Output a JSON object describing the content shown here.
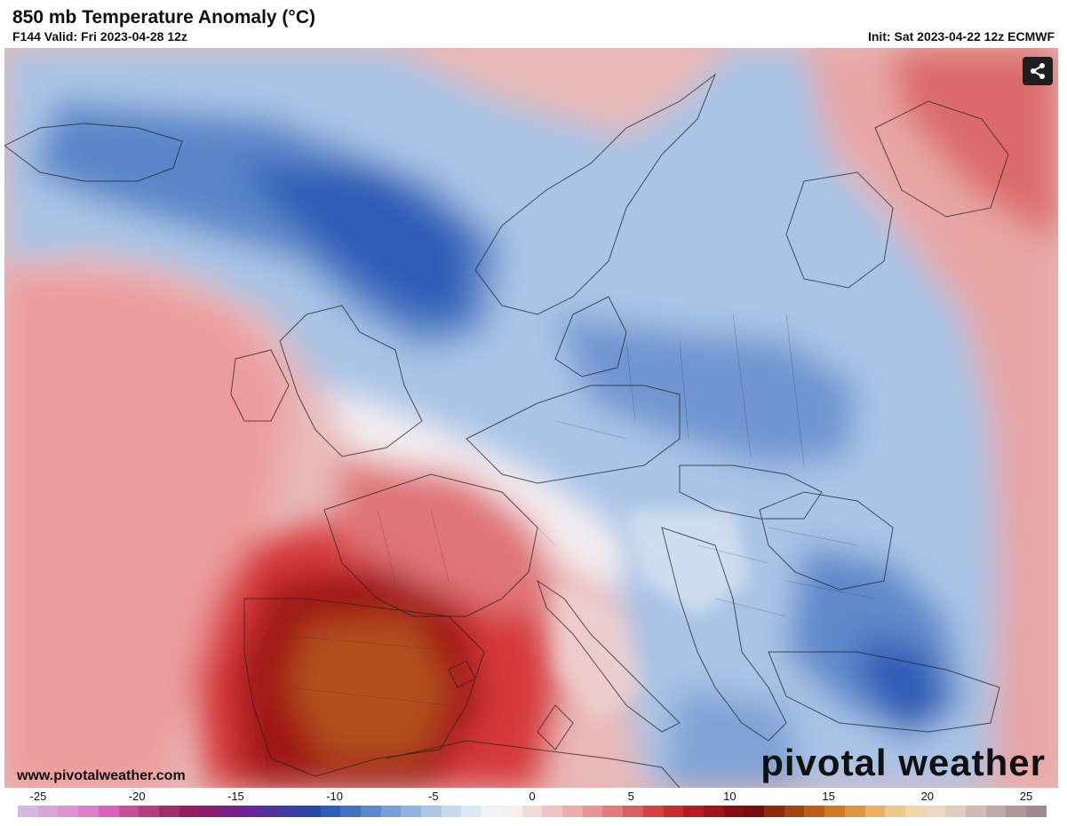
{
  "header": {
    "title": "850 mb Temperature Anomaly (°C)",
    "valid": "F144 Valid: Fri 2023-04-28 12z",
    "init": "Init: Sat 2023-04-22 12z ECMWF"
  },
  "map": {
    "share_icon": "share-icon",
    "watermark_url": "www.pivotalweather.com",
    "brand": "pivotal weather"
  },
  "colorbar": {
    "ticks": [
      "-25",
      "-20",
      "-15",
      "-10",
      "-5",
      "0",
      "5",
      "10",
      "15",
      "20",
      "25"
    ],
    "colors": [
      "#d5b8e0",
      "#d9a6dc",
      "#dc93d6",
      "#de7fcd",
      "#d862bd",
      "#c94e9c",
      "#b63d7e",
      "#a32d68",
      "#93215d",
      "#8a1f72",
      "#7a1f86",
      "#6a2699",
      "#55309f",
      "#3e3da7",
      "#2847ad",
      "#2e60b9",
      "#4273c2",
      "#5b89cb",
      "#779fd4",
      "#92b4dc",
      "#adc6e4",
      "#c6d8ec",
      "#dde8f3",
      "#f1f5f9",
      "#f7eeee",
      "#f4d9d9",
      "#f0c4c4",
      "#ecadad",
      "#e79596",
      "#e27b7c",
      "#dc5e60",
      "#d64244",
      "#cc2b2e",
      "#b91c20",
      "#a01318",
      "#870d12",
      "#780c0f",
      "#8b2a0c",
      "#a3440e",
      "#bc5e14",
      "#d27a22",
      "#e09640",
      "#e8b062",
      "#eec78a",
      "#f1d6ab",
      "#eed8c2",
      "#e3cbc0",
      "#d2bab5",
      "#bfa9a8",
      "#ac9899",
      "#9f8b8d"
    ]
  }
}
